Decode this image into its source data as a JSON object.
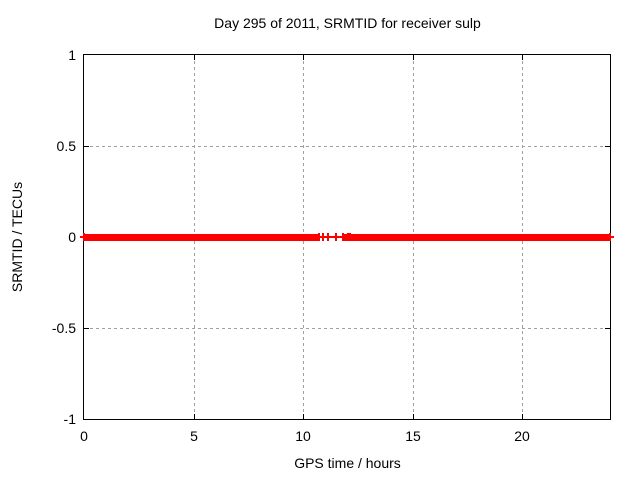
{
  "chart_data": {
    "type": "scatter",
    "title": "Day 295 of 2011, SRMTID for receiver sulp",
    "xlabel": "GPS time / hours",
    "ylabel": "SRMTID / TECUs",
    "xlim": [
      0,
      24
    ],
    "ylim": [
      -1,
      1
    ],
    "xticks": [
      {
        "value": 0,
        "label": "0"
      },
      {
        "value": 5,
        "label": "5"
      },
      {
        "value": 10,
        "label": "10"
      },
      {
        "value": 15,
        "label": "15"
      },
      {
        "value": 20,
        "label": "20"
      }
    ],
    "yticks": [
      {
        "value": 1,
        "label": "1"
      },
      {
        "value": 0.5,
        "label": "0.5"
      },
      {
        "value": 0,
        "label": "0"
      },
      {
        "value": -0.5,
        "label": "-0.5"
      },
      {
        "value": -1,
        "label": "-1"
      }
    ],
    "grid": true,
    "grid_style": "dashed",
    "legend": "none",
    "marker": "plus",
    "series": [
      {
        "name": "SRMTID",
        "color": "#ff0000",
        "y_value": 0,
        "x_segments": [
          [
            0,
            10.7
          ],
          [
            11.8,
            12.05
          ],
          [
            12.15,
            24
          ]
        ],
        "x_isolated_points": [
          10.9,
          11.15,
          11.5
        ]
      }
    ],
    "colors": {
      "grid": "#a0a0a0",
      "axis": "#000000",
      "text": "#000000",
      "background": "#ffffff"
    }
  }
}
